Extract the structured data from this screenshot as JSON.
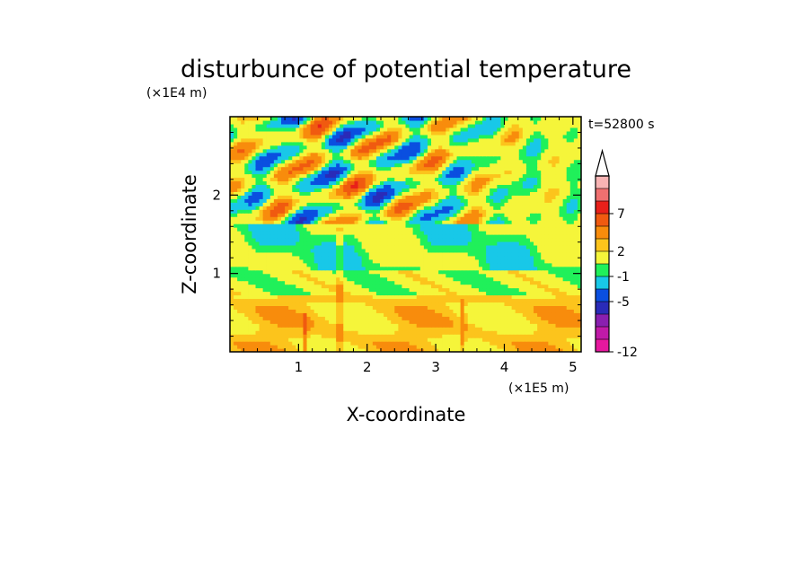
{
  "chart_data": {
    "type": "heatmap",
    "title": "disturbunce of potential temperature",
    "xlabel": "X-coordinate",
    "ylabel": "Z-coordinate",
    "x_unit": "(×1E5 m)",
    "y_unit": "(×1E4 m)",
    "time_label": "t=52800 s",
    "xlim": [
      0,
      5.12
    ],
    "ylim": [
      0,
      3.0
    ],
    "x_ticks": [
      {
        "v": 1,
        "label": "1"
      },
      {
        "v": 2,
        "label": "2"
      },
      {
        "v": 3,
        "label": "3"
      },
      {
        "v": 4,
        "label": "4"
      },
      {
        "v": 5,
        "label": "5"
      }
    ],
    "y_ticks": [
      {
        "v": 1,
        "label": "1"
      },
      {
        "v": 2,
        "label": "2"
      }
    ],
    "colorbar": {
      "colors": [
        "#e6189e",
        "#c01aa8",
        "#8a1fb0",
        "#2a2bb8",
        "#0a4fe0",
        "#18c8e8",
        "#20f05a",
        "#f5f53a",
        "#fcc41c",
        "#f88c0c",
        "#f05a10",
        "#e8201a",
        "#f07070",
        "#f8b4b4"
      ],
      "extend_top_color": "#ffffff",
      "labels": [
        {
          "label": "-12",
          "boundary": 0
        },
        {
          "label": "-5",
          "boundary": 4
        },
        {
          "label": "-1",
          "boundary": 6
        },
        {
          "label": "2",
          "boundary": 8
        },
        {
          "label": "7",
          "boundary": 11
        }
      ]
    },
    "field_levels": {
      "lowest_band": "yellow / light orange",
      "middle_band": "green",
      "upper_band": "alternating orange, yellow, green, cyan, blue"
    }
  }
}
